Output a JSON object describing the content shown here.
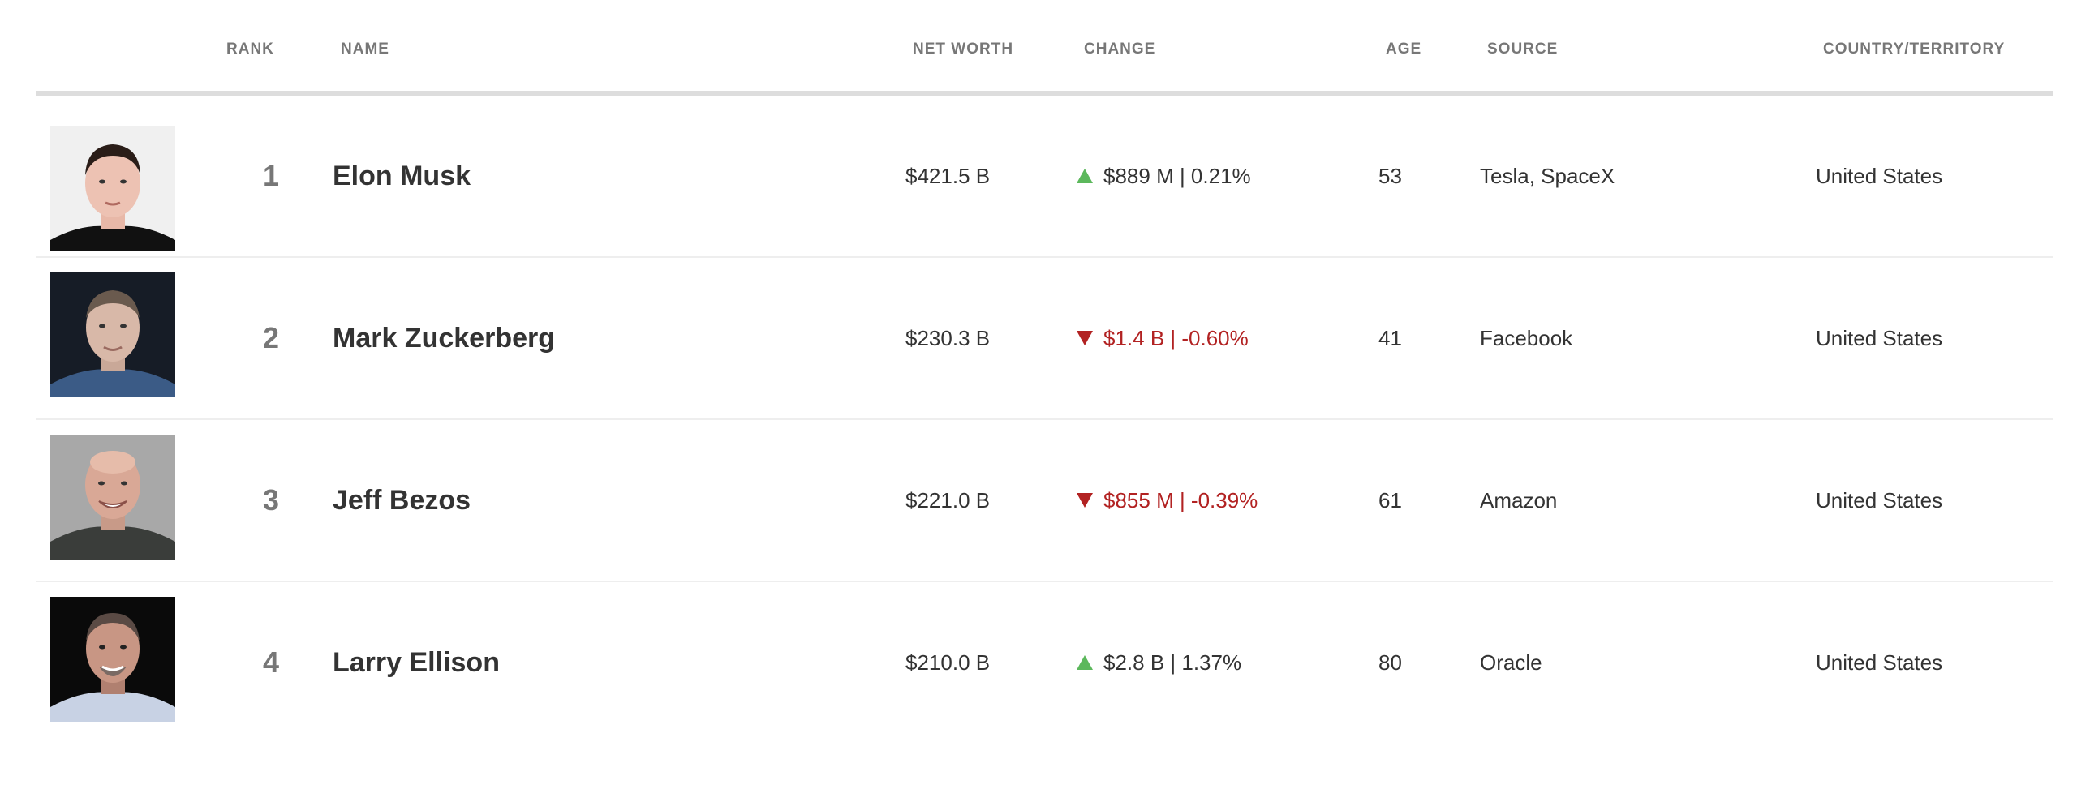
{
  "colors": {
    "up": "#5cb85c",
    "down": "#b22222",
    "header_text": "#777777",
    "header_rule": "#dddddd"
  },
  "header": {
    "rank": "RANK",
    "name": "NAME",
    "net_worth": "NET WORTH",
    "change": "CHANGE",
    "age": "AGE",
    "source": "SOURCE",
    "country": "COUNTRY/TERRITORY"
  },
  "rows": [
    {
      "rank": "1",
      "name": "Elon Musk",
      "net_worth": "$421.5 B",
      "direction": "up",
      "change": "$889 M | 0.21%",
      "age": "53",
      "source": "Tesla, SpaceX",
      "country": "United States",
      "photo_icon": "person-photo"
    },
    {
      "rank": "2",
      "name": "Mark Zuckerberg",
      "net_worth": "$230.3 B",
      "direction": "down",
      "change": "$1.4 B | -0.60%",
      "age": "41",
      "source": "Facebook",
      "country": "United States",
      "photo_icon": "person-photo"
    },
    {
      "rank": "3",
      "name": "Jeff Bezos",
      "net_worth": "$221.0 B",
      "direction": "down",
      "change": "$855 M | -0.39%",
      "age": "61",
      "source": "Amazon",
      "country": "United States",
      "photo_icon": "person-photo"
    },
    {
      "rank": "4",
      "name": "Larry Ellison",
      "net_worth": "$210.0 B",
      "direction": "up",
      "change": "$2.8 B | 1.37%",
      "age": "80",
      "source": "Oracle",
      "country": "United States",
      "photo_icon": "person-photo"
    }
  ]
}
